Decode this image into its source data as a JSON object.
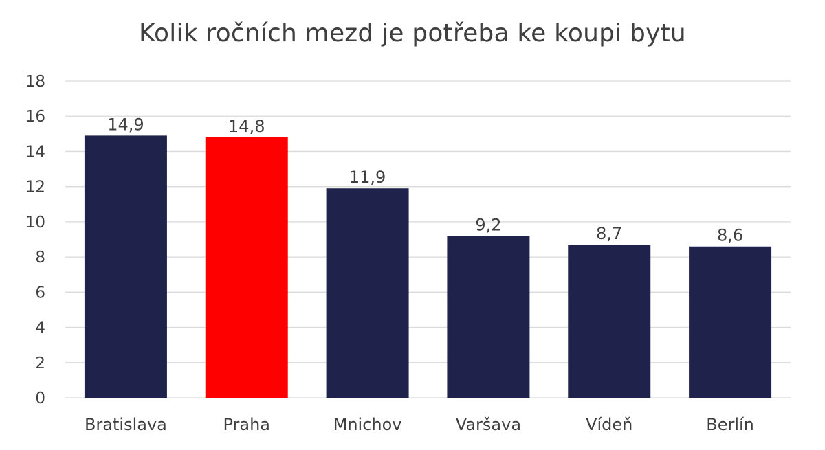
{
  "chart_data": {
    "type": "bar",
    "title": "Kolik ročních mezd je potřeba ke koupi bytu",
    "categories": [
      "Bratislava",
      "Praha",
      "Mnichov",
      "Varšava",
      "Vídeň",
      "Berlín"
    ],
    "values": [
      14.9,
      14.8,
      11.9,
      9.2,
      8.7,
      8.6
    ],
    "data_labels": [
      "14,9",
      "14,8",
      "11,9",
      "9,2",
      "8,7",
      "8,6"
    ],
    "ylim": [
      0,
      18
    ],
    "yticks": [
      0,
      2,
      4,
      6,
      8,
      10,
      12,
      14,
      16,
      18
    ],
    "grid": true,
    "legend": "none",
    "xlabel": "",
    "ylabel": "",
    "colors": {
      "default_bar": "#1f224b",
      "highlight_bar": "#ff0000",
      "highlight_category": "Praha",
      "gridline": "#d9d9d9",
      "text": "#3f3f3f"
    }
  }
}
